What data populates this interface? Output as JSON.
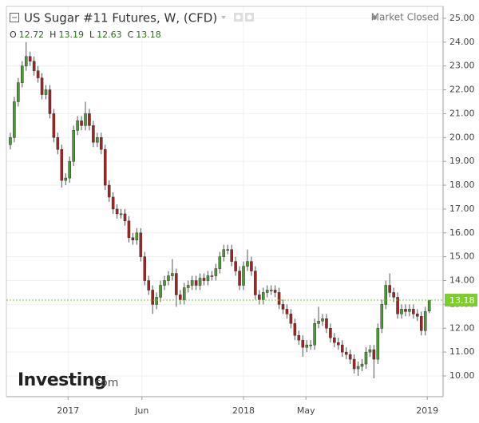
{
  "chart_data": {
    "type": "candlestick",
    "title": "US Sugar #11 Futures, W, (CFD)",
    "status": "Market Closed",
    "ohlc_labels": [
      "O",
      "H",
      "L",
      "C"
    ],
    "open": [
      19.7,
      20.0,
      21.5,
      22.3,
      23.0,
      23.4,
      23.2,
      22.8,
      22.5,
      21.8,
      22.0,
      21.0,
      20.0,
      19.5,
      18.2,
      18.3,
      19.0,
      20.3,
      20.7,
      20.5,
      21.0,
      20.5,
      19.8,
      20.0,
      19.5,
      18.0,
      17.5,
      17.0,
      16.8,
      16.8,
      16.5,
      15.8,
      15.7,
      16.0,
      15.0,
      14.0,
      13.6,
      13.0,
      13.3,
      13.8,
      14.0,
      14.2,
      14.3,
      13.4,
      13.2,
      13.7,
      13.8,
      14.0,
      13.8,
      14.1,
      14.0,
      14.2,
      14.2,
      14.5,
      15.0,
      15.3,
      15.3,
      14.8,
      14.4,
      13.8,
      14.6,
      14.8,
      14.4,
      13.4,
      13.2,
      13.5,
      13.6,
      13.6,
      13.5,
      13.0,
      12.8,
      12.6,
      12.2,
      11.7,
      11.5,
      11.2,
      11.3,
      11.3,
      12.2,
      12.3,
      12.4,
      12.0,
      11.6,
      11.4,
      11.3,
      11.0,
      10.9,
      10.7,
      10.3,
      10.4,
      10.5,
      11.0,
      11.1,
      10.7,
      12.0,
      13.0,
      13.8,
      13.5,
      13.3,
      12.6,
      12.8,
      12.7,
      12.8,
      12.6,
      12.5,
      11.9,
      12.72
    ],
    "high": [
      20.2,
      21.7,
      22.5,
      23.2,
      24.0,
      23.6,
      23.4,
      23.0,
      22.7,
      22.2,
      22.2,
      21.2,
      20.2,
      19.7,
      18.5,
      19.2,
      20.5,
      20.9,
      20.9,
      21.5,
      21.2,
      20.7,
      20.2,
      20.2,
      19.7,
      18.2,
      17.7,
      17.2,
      17.0,
      17.0,
      16.7,
      16.0,
      16.2,
      16.2,
      15.2,
      14.2,
      13.8,
      13.5,
      14.0,
      14.2,
      14.4,
      14.9,
      14.5,
      13.6,
      13.9,
      14.0,
      14.2,
      14.2,
      14.3,
      14.3,
      14.4,
      14.4,
      14.7,
      15.2,
      15.5,
      15.5,
      15.5,
      15.0,
      14.6,
      14.8,
      15.3,
      15.0,
      14.6,
      13.6,
      13.7,
      13.8,
      13.8,
      13.8,
      13.7,
      13.2,
      13.0,
      12.8,
      12.4,
      11.9,
      11.7,
      11.5,
      11.5,
      12.4,
      12.9,
      12.6,
      12.6,
      12.2,
      11.8,
      11.6,
      11.5,
      11.2,
      11.1,
      10.9,
      10.6,
      10.7,
      11.2,
      11.3,
      11.3,
      12.2,
      13.2,
      14.0,
      14.3,
      13.7,
      13.5,
      13.0,
      13.0,
      13.0,
      13.0,
      12.8,
      12.7,
      12.9,
      13.19
    ],
    "low": [
      19.5,
      19.8,
      21.3,
      22.1,
      22.8,
      23.0,
      22.6,
      22.3,
      21.6,
      21.6,
      20.8,
      19.8,
      19.3,
      17.9,
      18.0,
      18.1,
      18.8,
      20.1,
      20.3,
      20.3,
      20.3,
      19.6,
      19.6,
      19.3,
      17.8,
      17.3,
      16.8,
      16.6,
      16.6,
      16.3,
      15.6,
      15.5,
      15.5,
      14.8,
      13.8,
      13.4,
      12.6,
      12.8,
      13.1,
      13.6,
      13.8,
      14.0,
      12.9,
      13.0,
      13.0,
      13.5,
      13.6,
      13.6,
      13.6,
      13.8,
      13.8,
      14.0,
      14.0,
      14.3,
      14.8,
      15.1,
      14.6,
      14.2,
      13.6,
      13.6,
      14.4,
      14.2,
      13.2,
      13.0,
      13.0,
      13.3,
      13.4,
      13.3,
      12.8,
      12.6,
      12.4,
      12.0,
      11.5,
      11.3,
      10.8,
      11.0,
      11.1,
      11.1,
      12.0,
      12.1,
      11.8,
      11.4,
      11.2,
      11.1,
      10.8,
      10.7,
      10.5,
      10.1,
      10.0,
      10.2,
      10.3,
      10.8,
      9.9,
      10.5,
      11.8,
      12.8,
      13.3,
      13.1,
      12.4,
      12.4,
      12.5,
      12.5,
      12.4,
      12.3,
      11.7,
      11.7,
      12.63
    ],
    "close": [
      20.0,
      21.5,
      22.3,
      23.0,
      23.4,
      23.2,
      22.8,
      22.5,
      21.8,
      22.0,
      21.0,
      20.0,
      19.5,
      18.2,
      18.3,
      19.0,
      20.3,
      20.7,
      20.5,
      21.0,
      20.5,
      19.8,
      20.0,
      19.5,
      18.0,
      17.5,
      17.0,
      16.8,
      16.8,
      16.5,
      15.8,
      15.7,
      16.0,
      15.0,
      14.0,
      13.6,
      13.0,
      13.3,
      13.8,
      14.0,
      14.2,
      14.3,
      13.4,
      13.2,
      13.7,
      13.8,
      14.0,
      13.8,
      14.1,
      14.0,
      14.2,
      14.2,
      14.5,
      15.0,
      15.3,
      15.3,
      14.8,
      14.4,
      13.8,
      14.6,
      14.8,
      14.4,
      13.4,
      13.2,
      13.5,
      13.6,
      13.6,
      13.5,
      13.0,
      12.8,
      12.6,
      12.2,
      11.7,
      11.5,
      11.2,
      11.3,
      11.3,
      12.2,
      12.3,
      12.4,
      12.0,
      11.6,
      11.4,
      11.3,
      11.0,
      10.9,
      10.7,
      10.3,
      10.4,
      10.5,
      11.0,
      11.1,
      10.7,
      12.0,
      13.0,
      13.8,
      13.5,
      13.3,
      12.6,
      12.8,
      12.7,
      12.8,
      12.6,
      12.5,
      11.9,
      12.7,
      13.18
    ],
    "up_color": "#4d9a34",
    "down_color": "#a02424",
    "last_price_color": "#7ccf29",
    "ylim": [
      9.13,
      25.5
    ],
    "yticks": [
      {
        "value": 10,
        "label": "10.00"
      },
      {
        "value": 11,
        "label": "11.00"
      },
      {
        "value": 12,
        "label": "12.00"
      },
      {
        "value": 13,
        "label": "13.00"
      },
      {
        "value": 14,
        "label": "14.00"
      },
      {
        "value": 15,
        "label": "15.00"
      },
      {
        "value": 16,
        "label": "16.00"
      },
      {
        "value": 17,
        "label": "17.00"
      },
      {
        "value": 18,
        "label": "18.00"
      },
      {
        "value": 19,
        "label": "19.00"
      },
      {
        "value": 20,
        "label": "20.00"
      },
      {
        "value": 21,
        "label": "21.00"
      },
      {
        "value": 22,
        "label": "22.00"
      },
      {
        "value": 23,
        "label": "23.00"
      },
      {
        "value": 24,
        "label": "24.00"
      },
      {
        "value": 25,
        "label": "25.00"
      }
    ],
    "xlim": [
      -1,
      109.5
    ],
    "xticks": [
      {
        "value": 14.6,
        "label": "2017"
      },
      {
        "value": 33.3,
        "label": "Jun"
      },
      {
        "value": 59.0,
        "label": "2018"
      },
      {
        "value": 74.8,
        "label": "May"
      },
      {
        "value": 105.5,
        "label": "2019"
      }
    ],
    "grid": true
  },
  "logo": {
    "brand": "Investing",
    "suffix": ".com"
  }
}
